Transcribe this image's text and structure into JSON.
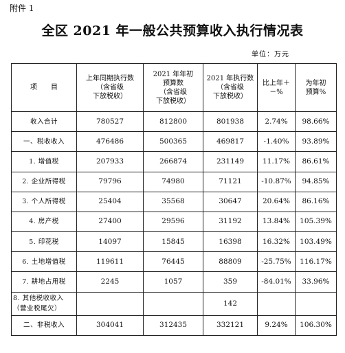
{
  "attachment_label": "附件 1",
  "title": "全区 2021 年一般公共预算收入执行情况表",
  "unit_label": "单位：万元",
  "headers": [
    "项　　目",
    "上年同期执行数（含省级下放税收）",
    "2021 年年初预算数（含省级下放税收）",
    "2021 年执行数（含省级下放税收）",
    "比上年+－%",
    "为年初预算%"
  ],
  "header_lines": [
    [
      "项　　目"
    ],
    [
      "上年同期执行数",
      "（含省级",
      "下放税收）"
    ],
    [
      "2021 年年初",
      "预算数",
      "（含省级",
      "下放税收）"
    ],
    [
      "2021 年执行数",
      "（含省级",
      "下放税收）"
    ],
    [
      "比上年＋",
      "－%"
    ],
    [
      "为年初",
      "预算%"
    ]
  ],
  "rows": [
    {
      "name": "收入合计",
      "prev": "780527",
      "budget": "812800",
      "actual": "801938",
      "yoy": "2.74%",
      "pct": "98.66%"
    },
    {
      "name": "一、税收收入",
      "prev": "476486",
      "budget": "500365",
      "actual": "469817",
      "yoy": "-1.40%",
      "pct": "93.89%"
    },
    {
      "name": "1. 增值税",
      "prev": "207933",
      "budget": "266874",
      "actual": "231149",
      "yoy": "11.17%",
      "pct": "86.61%"
    },
    {
      "name": "2. 企业所得税",
      "prev": "79796",
      "budget": "74980",
      "actual": "71121",
      "yoy": "-10.87%",
      "pct": "94.85%"
    },
    {
      "name": "3. 个人所得税",
      "prev": "25404",
      "budget": "35568",
      "actual": "30647",
      "yoy": "20.64%",
      "pct": "86.16%"
    },
    {
      "name": "4. 房产税",
      "prev": "27400",
      "budget": "29596",
      "actual": "31192",
      "yoy": "13.84%",
      "pct": "105.39%"
    },
    {
      "name": "5. 印花税",
      "prev": "14097",
      "budget": "15845",
      "actual": "16398",
      "yoy": "16.32%",
      "pct": "103.49%"
    },
    {
      "name": "6. 土地增值税",
      "prev": "119611",
      "budget": "76445",
      "actual": "88809",
      "yoy": "-25.75%",
      "pct": "116.17%"
    },
    {
      "name": "7. 耕地占用税",
      "prev": "2245",
      "budget": "1057",
      "actual": "359",
      "yoy": "-84.01%",
      "pct": "33.96%"
    },
    {
      "name": "8. 其他税收收入（营业税尾欠）",
      "name_lines": [
        "8. 其他税收收入",
        "（营业税尾欠）"
      ],
      "prev": "",
      "budget": "",
      "actual": "142",
      "yoy": "",
      "pct": ""
    },
    {
      "name": "二、非税收入",
      "prev": "304041",
      "budget": "312435",
      "actual": "332121",
      "yoy": "9.24%",
      "pct": "106.30%"
    }
  ]
}
